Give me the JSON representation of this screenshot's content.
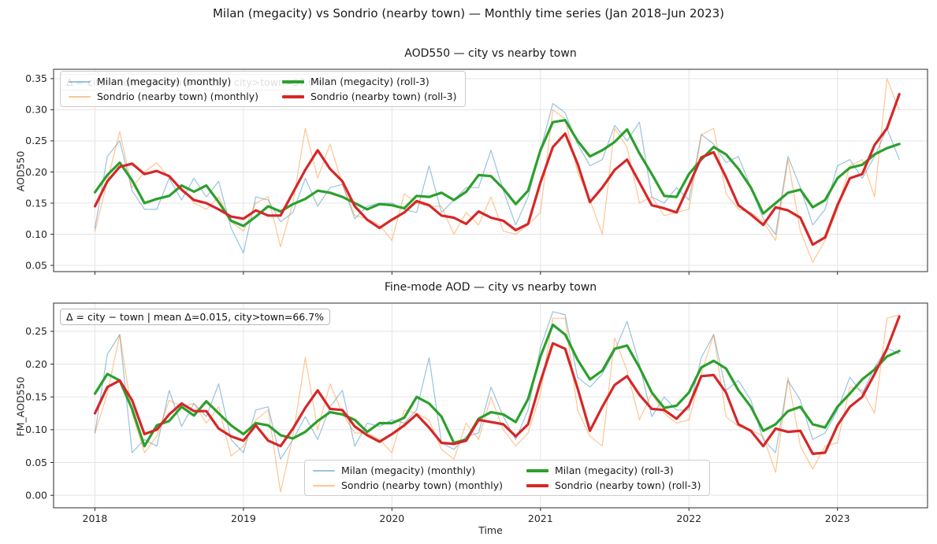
{
  "figure": {
    "suptitle": "Milan (megacity) vs Sondrio (nearby town) — Monthly time series (Jan 2018–Jun 2023)",
    "background": "#ffffff"
  },
  "colors": {
    "milan_monthly": "#1f77b4",
    "sondrio_monthly": "#ff7f0e",
    "milan_roll3": "#2ca02c",
    "sondrio_roll3": "#d62728",
    "grid": "#e5e5e5",
    "frame": "#2b2b2b",
    "text": "#262626"
  },
  "x_axis": {
    "label": "Time",
    "ticks": [
      "2018",
      "2019",
      "2020",
      "2021",
      "2022",
      "2023"
    ],
    "tick_month_indices": [
      0,
      12,
      24,
      36,
      48,
      60
    ],
    "range": "Jan 2018 – Jun 2023"
  },
  "chart_data": [
    {
      "type": "line",
      "title": "AOD550 — city vs nearby town",
      "xlabel": "",
      "ylabel": "AOD550",
      "x": {
        "start": "2018-01",
        "end": "2023-06",
        "step": "month",
        "n": 66
      },
      "xticks": [
        "2018",
        "2019",
        "2020",
        "2021",
        "2022",
        "2023"
      ],
      "xtick_month_indices": [
        0,
        12,
        24,
        36,
        48,
        60
      ],
      "yticks": [
        0.05,
        0.1,
        0.15,
        0.2,
        0.25,
        0.3,
        0.35
      ],
      "ylim": [
        0.04,
        0.365
      ],
      "grid": true,
      "legend_position": "upper left",
      "annotation": "Δ = city − town | mean Δ=0.010, city>town=57.0%",
      "series": [
        {
          "name": "Milan (megacity) (monthly)",
          "color": "#1f77b4",
          "opacity": 0.45,
          "width": 1.2,
          "values": [
            0.11,
            0.225,
            0.25,
            0.17,
            0.14,
            0.14,
            0.19,
            0.155,
            0.19,
            0.16,
            0.185,
            0.11,
            0.07,
            0.16,
            0.155,
            0.12,
            0.135,
            0.19,
            0.145,
            0.175,
            0.18,
            0.125,
            0.145,
            0.15,
            0.15,
            0.14,
            0.135,
            0.21,
            0.135,
            0.155,
            0.175,
            0.175,
            0.235,
            0.17,
            0.115,
            0.16,
            0.235,
            0.31,
            0.295,
            0.245,
            0.21,
            0.22,
            0.275,
            0.25,
            0.28,
            0.16,
            0.15,
            0.175,
            0.155,
            0.26,
            0.245,
            0.215,
            0.225,
            0.175,
            0.125,
            0.1,
            0.225,
            0.175,
            0.115,
            0.14,
            0.21,
            0.22,
            0.19,
            0.225,
            0.27,
            0.22
          ]
        },
        {
          "name": "Sondrio (nearby town) (monthly)",
          "color": "#ff7f0e",
          "opacity": 0.45,
          "width": 1.2,
          "values": [
            0.105,
            0.185,
            0.265,
            0.175,
            0.2,
            0.215,
            0.19,
            0.175,
            0.15,
            0.14,
            0.16,
            0.12,
            0.105,
            0.15,
            0.16,
            0.08,
            0.15,
            0.27,
            0.19,
            0.245,
            0.18,
            0.13,
            0.125,
            0.115,
            0.09,
            0.165,
            0.15,
            0.145,
            0.145,
            0.1,
            0.135,
            0.115,
            0.16,
            0.105,
            0.1,
            0.115,
            0.135,
            0.3,
            0.285,
            0.2,
            0.155,
            0.1,
            0.27,
            0.24,
            0.15,
            0.16,
            0.13,
            0.135,
            0.14,
            0.26,
            0.27,
            0.165,
            0.14,
            0.135,
            0.12,
            0.09,
            0.22,
            0.105,
            0.055,
            0.09,
            0.14,
            0.21,
            0.22,
            0.16,
            0.35,
            0.3
          ]
        },
        {
          "name": "Milan (megacity) (roll-3)",
          "color": "#2ca02c",
          "opacity": 1,
          "width": 3.2,
          "derived": "rolling_mean_3_centered_of_series_0"
        },
        {
          "name": "Sondrio (nearby town) (roll-3)",
          "color": "#d62728",
          "opacity": 1,
          "width": 3.2,
          "derived": "rolling_mean_3_centered_of_series_1"
        }
      ]
    },
    {
      "type": "line",
      "title": "Fine-mode AOD — city vs nearby town",
      "xlabel": "Time",
      "ylabel": "FM_AOD550",
      "x": {
        "start": "2018-01",
        "end": "2023-06",
        "step": "month",
        "n": 66
      },
      "xticks": [
        "2018",
        "2019",
        "2020",
        "2021",
        "2022",
        "2023"
      ],
      "xtick_month_indices": [
        0,
        12,
        24,
        36,
        48,
        60
      ],
      "yticks": [
        0.0,
        0.05,
        0.1,
        0.15,
        0.2,
        0.25
      ],
      "ylim": [
        -0.019,
        0.293
      ],
      "grid": true,
      "legend_position": "lower center",
      "annotation": "Δ = city − town | mean Δ=0.015, city>town=66.7%",
      "series": [
        {
          "name": "Milan (megacity) (monthly)",
          "color": "#1f77b4",
          "opacity": 0.45,
          "width": 1.2,
          "values": [
            0.095,
            0.215,
            0.245,
            0.065,
            0.085,
            0.075,
            0.16,
            0.105,
            0.14,
            0.12,
            0.17,
            0.085,
            0.065,
            0.13,
            0.135,
            0.055,
            0.085,
            0.12,
            0.085,
            0.135,
            0.16,
            0.075,
            0.11,
            0.105,
            0.115,
            0.11,
            0.13,
            0.21,
            0.08,
            0.07,
            0.09,
            0.095,
            0.165,
            0.12,
            0.085,
            0.13,
            0.225,
            0.28,
            0.275,
            0.18,
            0.165,
            0.185,
            0.22,
            0.265,
            0.2,
            0.12,
            0.15,
            0.13,
            0.13,
            0.21,
            0.245,
            0.16,
            0.175,
            0.145,
            0.085,
            0.065,
            0.175,
            0.145,
            0.085,
            0.095,
            0.13,
            0.18,
            0.155,
            0.195,
            0.225,
            0.215
          ]
        },
        {
          "name": "Sondrio (nearby town) (monthly)",
          "color": "#ff7f0e",
          "opacity": 0.45,
          "width": 1.2,
          "values": [
            0.095,
            0.155,
            0.245,
            0.125,
            0.065,
            0.09,
            0.145,
            0.135,
            0.14,
            0.11,
            0.135,
            0.06,
            0.075,
            0.115,
            0.13,
            0.005,
            0.09,
            0.21,
            0.1,
            0.17,
            0.125,
            0.095,
            0.095,
            0.085,
            0.065,
            0.13,
            0.125,
            0.115,
            0.07,
            0.055,
            0.11,
            0.085,
            0.15,
            0.1,
            0.075,
            0.095,
            0.155,
            0.27,
            0.27,
            0.13,
            0.09,
            0.075,
            0.24,
            0.19,
            0.115,
            0.155,
            0.125,
            0.11,
            0.115,
            0.185,
            0.245,
            0.12,
            0.105,
            0.1,
            0.09,
            0.035,
            0.18,
            0.075,
            0.04,
            0.075,
            0.08,
            0.165,
            0.16,
            0.125,
            0.27,
            0.275
          ]
        },
        {
          "name": "Milan (megacity) (roll-3)",
          "color": "#2ca02c",
          "opacity": 1,
          "width": 3.2,
          "derived": "rolling_mean_3_centered_of_series_0"
        },
        {
          "name": "Sondrio (nearby town) (roll-3)",
          "color": "#d62728",
          "opacity": 1,
          "width": 3.2,
          "derived": "rolling_mean_3_centered_of_series_1"
        }
      ]
    }
  ]
}
